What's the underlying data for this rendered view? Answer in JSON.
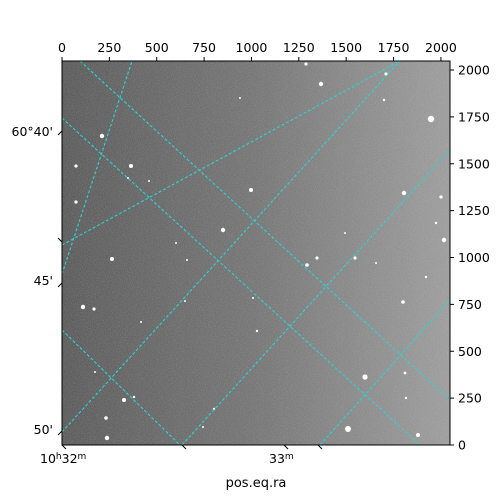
{
  "chart_data": {
    "type": "image",
    "title": "",
    "xlabel": "pos.eq.ra",
    "ylabel": "",
    "pixel_axes": {
      "x_range": [
        0,
        2048
      ],
      "y_range": [
        0,
        2048
      ],
      "x_ticks": [
        0,
        250,
        500,
        750,
        1000,
        1250,
        1500,
        1750,
        2000
      ],
      "y_ticks": [
        0,
        250,
        500,
        750,
        1000,
        1250,
        1500,
        1750,
        2000
      ],
      "x_tick_labels": [
        "0",
        "250",
        "500",
        "750",
        "1000",
        "1250",
        "1500",
        "1750",
        "2000"
      ],
      "y_tick_labels": [
        "0",
        "250",
        "500",
        "750",
        "1000",
        "1250",
        "1500",
        "1750",
        "2000"
      ]
    },
    "world_axes": {
      "ra_tick_labels": [
        "10h32m",
        "33m"
      ],
      "ra_label_parts": [
        [
          "10",
          "h",
          "32",
          "m"
        ],
        [
          "33",
          "m"
        ]
      ],
      "dec_tick_labels": [
        "60°40'",
        "45'",
        "50'"
      ]
    },
    "grid": true,
    "grid_color": "#2ad4d4",
    "image_style": "grayscale astronomical frame, darker on left, brighter on right"
  }
}
